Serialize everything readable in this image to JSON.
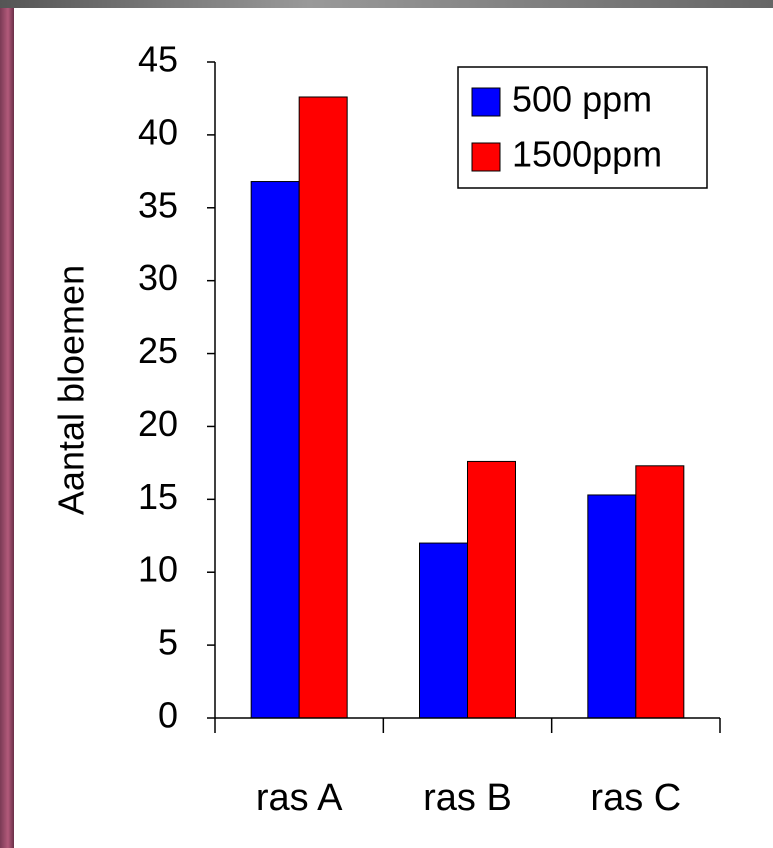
{
  "chart_data": {
    "type": "bar",
    "y_label": "Aantal bloemen",
    "categories": [
      "ras A",
      "ras B",
      "ras C"
    ],
    "series": [
      {
        "name": "500 ppm",
        "color": "#0000ff",
        "values": [
          36.8,
          12.0,
          15.3
        ]
      },
      {
        "name": "1500ppm",
        "color": "#ff0000",
        "values": [
          42.6,
          17.6,
          17.3
        ]
      }
    ],
    "ylim": [
      0,
      45
    ],
    "yticks": [
      0,
      5,
      10,
      15,
      20,
      25,
      30,
      35,
      40,
      45
    ],
    "grid": false,
    "legend": "upper-right"
  }
}
